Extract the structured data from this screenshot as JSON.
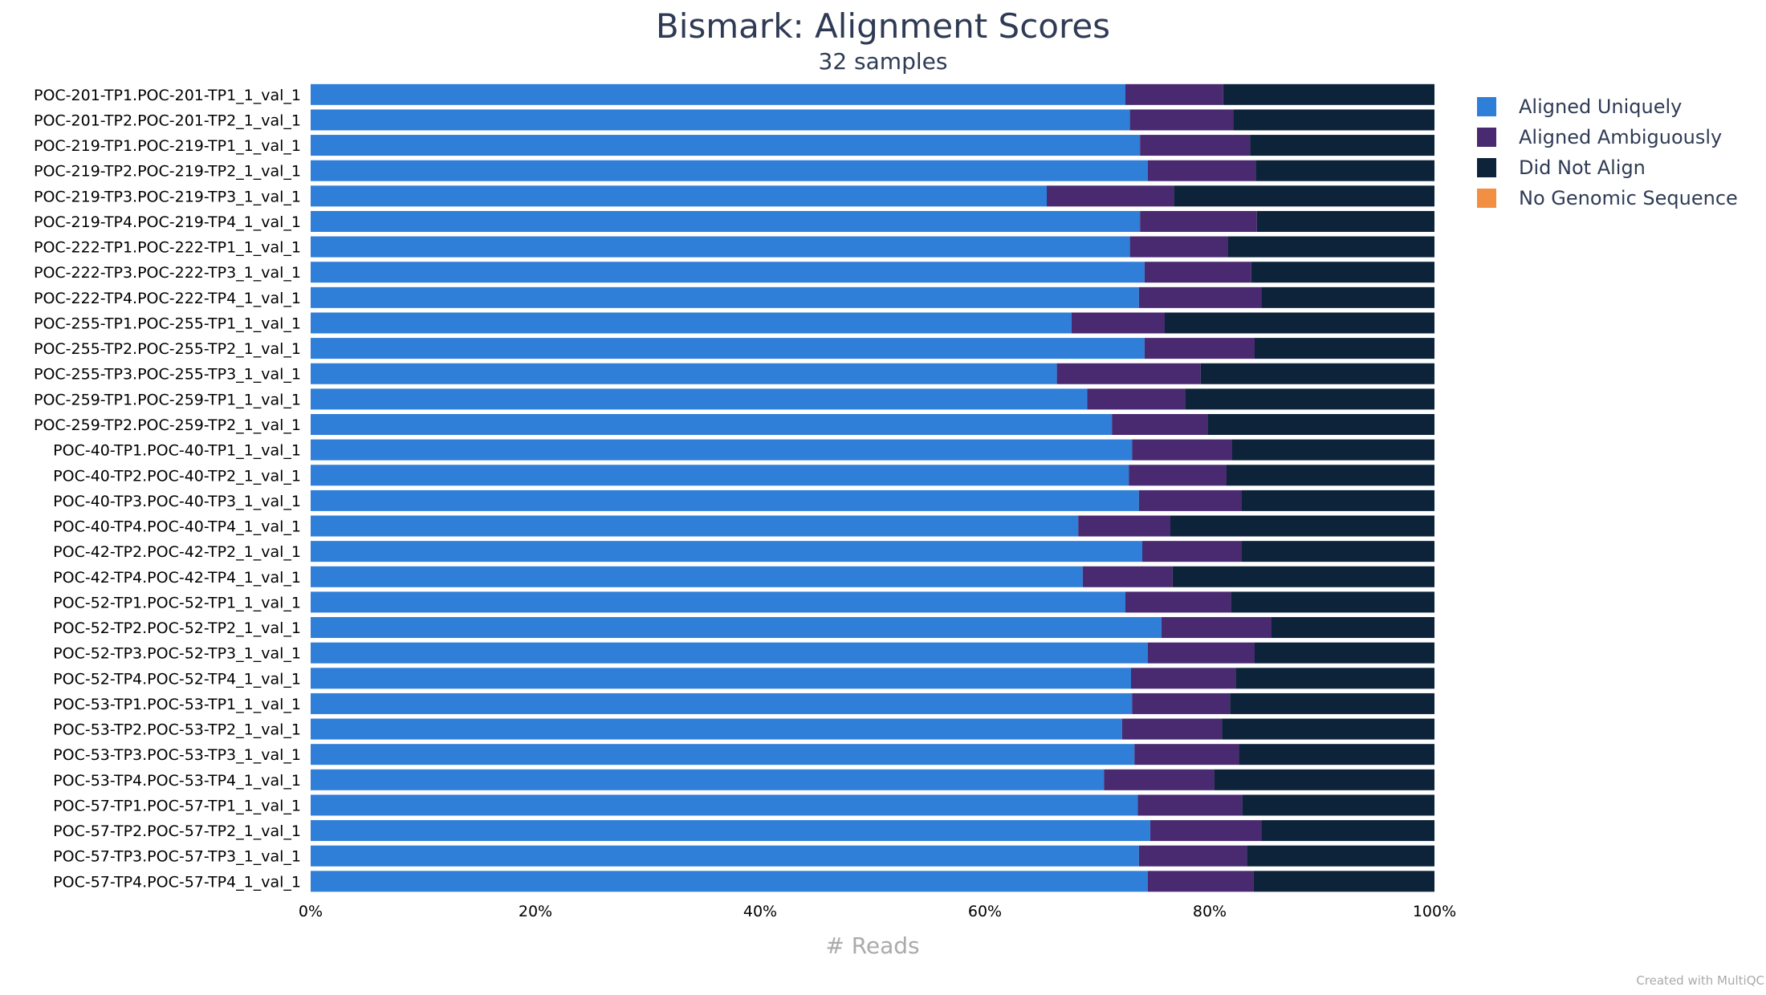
{
  "chart_data": {
    "type": "bar",
    "orientation": "horizontal",
    "stacked": true,
    "percent": true,
    "title": "Bismark: Alignment Scores",
    "subtitle": "32 samples",
    "xlabel": "# Reads",
    "xlim": [
      0,
      100
    ],
    "xticks": [
      "0%",
      "20%",
      "40%",
      "60%",
      "80%",
      "100%"
    ],
    "grid": false,
    "legend_position": "right",
    "categories": [
      "POC-201-TP1.POC-201-TP1_1_val_1",
      "POC-201-TP2.POC-201-TP2_1_val_1",
      "POC-219-TP1.POC-219-TP1_1_val_1",
      "POC-219-TP2.POC-219-TP2_1_val_1",
      "POC-219-TP3.POC-219-TP3_1_val_1",
      "POC-219-TP4.POC-219-TP4_1_val_1",
      "POC-222-TP1.POC-222-TP1_1_val_1",
      "POC-222-TP3.POC-222-TP3_1_val_1",
      "POC-222-TP4.POC-222-TP4_1_val_1",
      "POC-255-TP1.POC-255-TP1_1_val_1",
      "POC-255-TP2.POC-255-TP2_1_val_1",
      "POC-255-TP3.POC-255-TP3_1_val_1",
      "POC-259-TP1.POC-259-TP1_1_val_1",
      "POC-259-TP2.POC-259-TP2_1_val_1",
      "POC-40-TP1.POC-40-TP1_1_val_1",
      "POC-40-TP2.POC-40-TP2_1_val_1",
      "POC-40-TP3.POC-40-TP3_1_val_1",
      "POC-40-TP4.POC-40-TP4_1_val_1",
      "POC-42-TP2.POC-42-TP2_1_val_1",
      "POC-42-TP4.POC-42-TP4_1_val_1",
      "POC-52-TP1.POC-52-TP1_1_val_1",
      "POC-52-TP2.POC-52-TP2_1_val_1",
      "POC-52-TP3.POC-52-TP3_1_val_1",
      "POC-52-TP4.POC-52-TP4_1_val_1",
      "POC-53-TP1.POC-53-TP1_1_val_1",
      "POC-53-TP2.POC-53-TP2_1_val_1",
      "POC-53-TP3.POC-53-TP3_1_val_1",
      "POC-53-TP4.POC-53-TP4_1_val_1",
      "POC-57-TP1.POC-57-TP1_1_val_1",
      "POC-57-TP2.POC-57-TP2_1_val_1",
      "POC-57-TP3.POC-57-TP3_1_val_1",
      "POC-57-TP4.POC-57-TP4_1_val_1"
    ],
    "series": [
      {
        "name": "Aligned Uniquely",
        "color": "#2f7ed8",
        "values": [
          72.5,
          72.9,
          73.8,
          74.5,
          65.5,
          73.8,
          72.9,
          74.2,
          73.7,
          67.7,
          74.2,
          66.4,
          69.1,
          71.3,
          73.1,
          72.8,
          73.7,
          68.3,
          74.0,
          68.7,
          72.5,
          75.7,
          74.5,
          73.0,
          73.1,
          72.2,
          73.3,
          70.6,
          73.6,
          74.7,
          73.7,
          74.5
        ]
      },
      {
        "name": "Aligned Ambiguously",
        "color": "#492970",
        "values": [
          8.7,
          9.2,
          9.8,
          9.6,
          11.3,
          10.4,
          8.7,
          9.5,
          10.9,
          8.3,
          9.8,
          12.8,
          8.7,
          8.5,
          8.9,
          8.7,
          9.1,
          8.2,
          8.8,
          8.0,
          9.4,
          9.8,
          9.5,
          9.3,
          8.7,
          8.9,
          9.3,
          9.8,
          9.3,
          9.9,
          9.6,
          9.4
        ]
      },
      {
        "name": "Did Not Align",
        "color": "#0d233a",
        "values": [
          18.8,
          17.9,
          16.4,
          15.9,
          23.2,
          15.8,
          18.4,
          16.3,
          15.4,
          24.0,
          16.0,
          20.8,
          22.2,
          20.2,
          18.0,
          18.5,
          17.2,
          23.5,
          17.2,
          23.3,
          18.1,
          14.5,
          16.0,
          17.7,
          18.2,
          18.9,
          17.4,
          19.6,
          17.1,
          15.4,
          16.7,
          16.1
        ]
      },
      {
        "name": "No Genomic Sequence",
        "color": "#f28f43",
        "values": [
          0,
          0,
          0,
          0,
          0,
          0,
          0,
          0,
          0,
          0,
          0,
          0,
          0,
          0,
          0,
          0,
          0,
          0,
          0,
          0,
          0,
          0,
          0,
          0,
          0,
          0,
          0,
          0,
          0,
          0,
          0,
          0
        ]
      }
    ]
  },
  "footer": "Created with MultiQC"
}
